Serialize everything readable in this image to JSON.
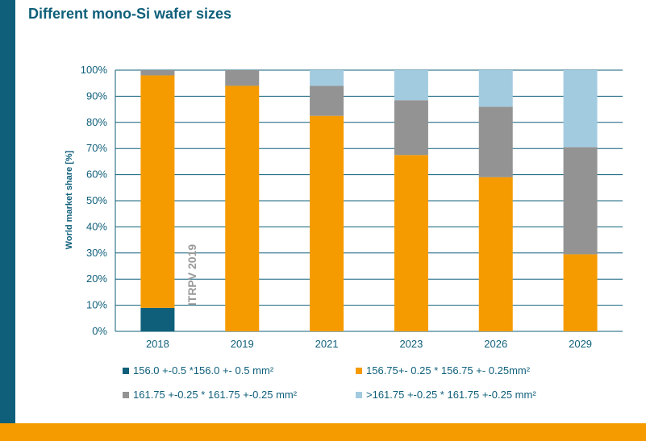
{
  "title": "Different mono-Si wafer sizes",
  "chart_data": {
    "type": "bar",
    "stacked": true,
    "categories": [
      "2018",
      "2019",
      "2021",
      "2023",
      "2026",
      "2029"
    ],
    "ylabel": "World market share [%]",
    "ylim": [
      0,
      100
    ],
    "yticks": [
      "0%",
      "10%",
      "20%",
      "30%",
      "40%",
      "50%",
      "60%",
      "70%",
      "80%",
      "90%",
      "100%"
    ],
    "grid": true,
    "legend_position": "bottom",
    "annotation": "ITRPV 2019",
    "series": [
      {
        "name": "156.0 +-0.5 *156.0 +- 0.5 mm²",
        "color": "#0f5f7a",
        "values": [
          9,
          0,
          0,
          0,
          0,
          0
        ]
      },
      {
        "name": "156.75+- 0.25 * 156.75 +- 0.25mm²",
        "color": "#f59b00",
        "values": [
          89,
          94,
          82.5,
          67.5,
          59,
          29.5
        ]
      },
      {
        "name": "161.75 +-0.25 * 161.75 +-0.25 mm²",
        "color": "#939393",
        "values": [
          2,
          6,
          11.5,
          21,
          27,
          41
        ]
      },
      {
        "name": ">161.75 +-0.25 * 161.75 +-0.25 mm²",
        "color": "#a3cbe0",
        "values": [
          0,
          0,
          6,
          11.5,
          14,
          29.5
        ]
      }
    ]
  }
}
